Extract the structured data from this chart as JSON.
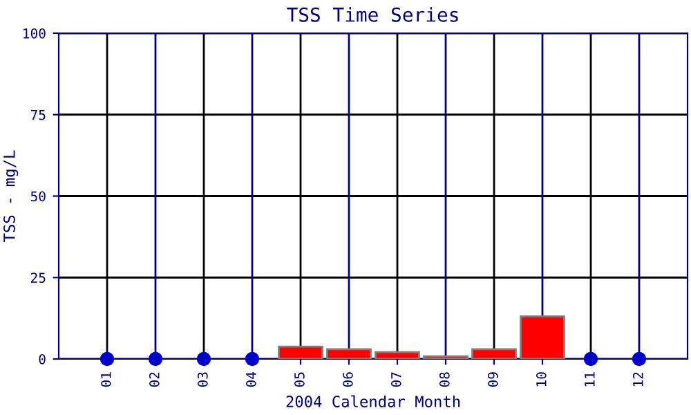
{
  "chart_data": {
    "type": "bar",
    "title": "TSS Time Series",
    "xlabel": "2004 Calendar Month",
    "ylabel": "TSS - mg/L",
    "categories": [
      "01",
      "02",
      "03",
      "04",
      "05",
      "06",
      "07",
      "08",
      "09",
      "10",
      "11",
      "12"
    ],
    "series": [
      {
        "color": "#ff0000",
        "values": [
          null,
          null,
          null,
          null,
          3.8,
          3.0,
          2.1,
          0.8,
          3.0,
          13.1,
          null,
          null
        ]
      },
      {
        "type": "scatter",
        "color": "#0000cc",
        "x": [
          "01",
          "02",
          "03",
          "04",
          "11",
          "12"
        ],
        "values": [
          0,
          0,
          0,
          0,
          0,
          0
        ]
      }
    ],
    "ylim": [
      0,
      100
    ],
    "yticks": [
      0,
      25,
      50,
      75,
      100
    ],
    "grid": true,
    "marker": "circle"
  }
}
